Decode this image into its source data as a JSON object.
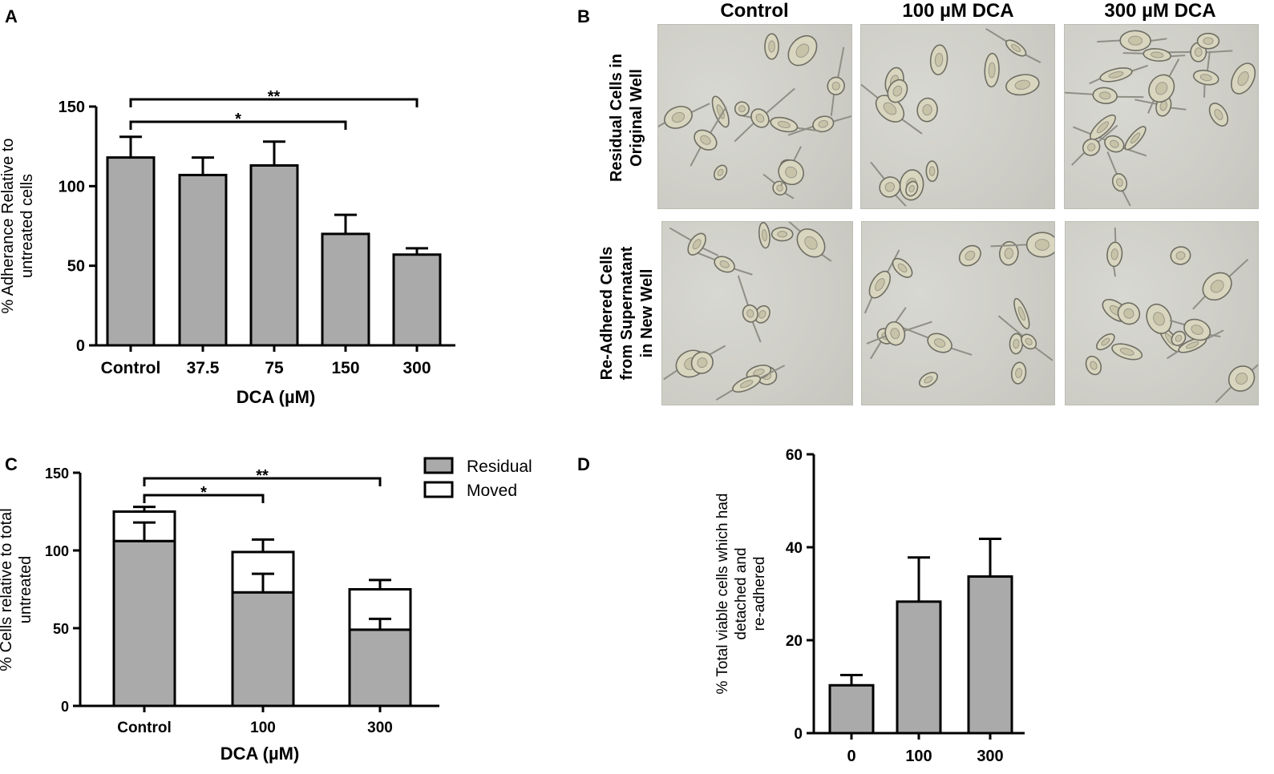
{
  "chart_data": [
    {
      "panel": "A",
      "type": "bar",
      "categories": [
        "Control",
        "37.5",
        "75",
        "150",
        "300"
      ],
      "values": [
        118,
        107,
        113,
        70,
        57
      ],
      "errors": [
        13,
        11,
        15,
        12,
        4
      ],
      "ylabel": [
        "% Adherance Relative to",
        "untreated cells"
      ],
      "xlabel": "DCA (µM)",
      "ylim": [
        0,
        150
      ],
      "yticks": [
        0,
        50,
        100,
        150
      ],
      "grid": false,
      "bar_color": "#aaaaaa",
      "significance": [
        {
          "from": "Control",
          "to": "150",
          "label": "*"
        },
        {
          "from": "Control",
          "to": "300",
          "label": "**"
        }
      ]
    },
    {
      "panel": "B",
      "type": "image-grid",
      "columns": [
        "Control",
        "100 µM DCA",
        "300 µM DCA"
      ],
      "rows": [
        [
          "Residual Cells in",
          "Original Well"
        ],
        [
          "Re-Adhered Cells",
          "from Supernatant",
          "in New Well"
        ]
      ]
    },
    {
      "panel": "C",
      "type": "bar",
      "stacked": true,
      "categories": [
        "Control",
        "100",
        "300"
      ],
      "series": [
        {
          "name": "Residual",
          "values": [
            106,
            73,
            49
          ],
          "errors": [
            12,
            12,
            7
          ],
          "color": "#aaaaaa"
        },
        {
          "name": "Moved",
          "values": [
            19,
            26,
            26
          ],
          "errors": [
            3,
            8,
            6
          ],
          "color": "#ffffff"
        }
      ],
      "ylabel": [
        "% Cells relative to total",
        "untreated"
      ],
      "xlabel": "DCA (µM)",
      "ylim": [
        0,
        150
      ],
      "yticks": [
        0,
        50,
        100,
        150
      ],
      "legend": "top-right",
      "significance": [
        {
          "from": "Control",
          "to": "100",
          "label": "*"
        },
        {
          "from": "Control",
          "to": "300",
          "label": "**"
        }
      ]
    },
    {
      "panel": "D",
      "type": "bar",
      "categories": [
        "0",
        "100",
        "300"
      ],
      "values": [
        10.3,
        28.3,
        33.7
      ],
      "errors": [
        2.2,
        9.5,
        8.1
      ],
      "ylabel": [
        "% Total viable cells which had",
        "detached and",
        "re-adhered"
      ],
      "xlabel": "",
      "ylim": [
        0,
        60
      ],
      "yticks": [
        0,
        20,
        40,
        60
      ],
      "bar_color": "#aaaaaa"
    }
  ],
  "panel_letters": [
    "A",
    "B",
    "C",
    "D"
  ]
}
